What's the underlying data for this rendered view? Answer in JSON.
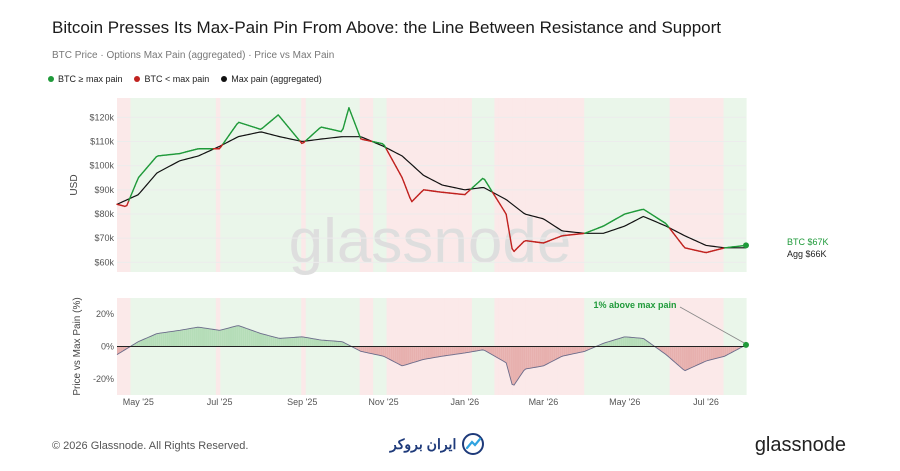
{
  "header": {
    "title": "Bitcoin Presses Its Max-Pain Pin From Above: the Line Between Resistance and Support",
    "subtitle": "BTC Price · Options Max Pain (aggregated) · Price vs Max Pain"
  },
  "legend": {
    "items": [
      {
        "label": "BTC ≥ max pain",
        "color": "#1f9a3a"
      },
      {
        "label": "BTC < max pain",
        "color": "#c0221f"
      },
      {
        "label": "Max pain (aggregated)",
        "color": "#111111"
      }
    ]
  },
  "colors": {
    "above": "#1f9a3a",
    "below": "#c0221f",
    "maxpain": "#111111",
    "band_red": "#fbe9e9",
    "band_green": "#eaf6ea"
  },
  "watermark": "glassnode",
  "chart_data": [
    {
      "type": "line",
      "ylabel": "USD",
      "ylim": [
        56000,
        128000
      ],
      "yticks": [
        60000,
        70000,
        80000,
        90000,
        100000,
        110000,
        120000
      ],
      "ytick_labels": [
        "$60k",
        "$70k",
        "$80k",
        "$90k",
        "$100k",
        "$110k",
        "$120k"
      ],
      "x_range": [
        "2025-04-15",
        "2026-07-31"
      ],
      "xtick_dates": [
        "2025-05-01",
        "2025-07-01",
        "2025-09-01",
        "2025-11-01",
        "2026-01-01",
        "2026-03-01",
        "2026-05-01",
        "2026-07-01"
      ],
      "xtick_labels": [
        "May '25",
        "Jul '25",
        "Sep '25",
        "Nov '25",
        "Jan '26",
        "Mar '26",
        "May '26",
        "Jul '26"
      ],
      "series": [
        {
          "name": "BTC",
          "x": [
            "2025-04-15",
            "2025-04-22",
            "2025-05-01",
            "2025-05-15",
            "2025-06-01",
            "2025-06-15",
            "2025-07-01",
            "2025-07-15",
            "2025-08-01",
            "2025-08-14",
            "2025-09-01",
            "2025-09-15",
            "2025-10-01",
            "2025-10-06",
            "2025-10-15",
            "2025-11-01",
            "2025-11-15",
            "2025-11-22",
            "2025-12-01",
            "2025-12-15",
            "2026-01-01",
            "2026-01-15",
            "2026-02-01",
            "2026-02-06",
            "2026-02-15",
            "2026-03-01",
            "2026-03-15",
            "2026-04-01",
            "2026-04-15",
            "2026-05-01",
            "2026-05-15",
            "2026-06-01",
            "2026-06-15",
            "2026-07-01",
            "2026-07-15",
            "2026-07-31"
          ],
          "y": [
            84000,
            83000,
            95000,
            104000,
            105000,
            107000,
            107000,
            118000,
            115000,
            121000,
            109000,
            116000,
            114000,
            124000,
            111000,
            109000,
            95000,
            85000,
            90000,
            89000,
            88000,
            95000,
            80000,
            64000,
            69000,
            68000,
            71000,
            72000,
            75000,
            80000,
            82000,
            76000,
            66000,
            64000,
            66000,
            67000
          ]
        },
        {
          "name": "Max pain (aggregated)",
          "x": [
            "2025-04-15",
            "2025-05-01",
            "2025-05-15",
            "2025-06-01",
            "2025-06-15",
            "2025-07-01",
            "2025-07-15",
            "2025-08-01",
            "2025-08-15",
            "2025-09-01",
            "2025-09-15",
            "2025-10-01",
            "2025-10-15",
            "2025-11-01",
            "2025-11-15",
            "2025-12-01",
            "2025-12-15",
            "2026-01-01",
            "2026-01-15",
            "2026-02-01",
            "2026-02-15",
            "2026-03-01",
            "2026-03-15",
            "2026-04-01",
            "2026-04-15",
            "2026-05-01",
            "2026-05-15",
            "2026-06-01",
            "2026-06-15",
            "2026-07-01",
            "2026-07-15",
            "2026-07-31"
          ],
          "y": [
            84000,
            88000,
            97000,
            102000,
            104000,
            108000,
            112000,
            114000,
            112000,
            110000,
            111000,
            112000,
            112000,
            108000,
            104000,
            96000,
            92000,
            90000,
            91000,
            86000,
            80000,
            78000,
            73000,
            72000,
            72000,
            75000,
            79000,
            75000,
            71000,
            67000,
            66000,
            66000
          ]
        }
      ],
      "annotations": [
        {
          "text": "BTC $67K",
          "color": "#1f9a3a"
        },
        {
          "text": "Agg $66K",
          "color": "#222222"
        }
      ]
    },
    {
      "type": "area",
      "ylabel": "Price vs Max Pain (%)",
      "ylim": [
        -30,
        30
      ],
      "yticks": [
        -20,
        0,
        20
      ],
      "ytick_labels": [
        "-20%",
        "0%",
        "20%"
      ],
      "x": [
        "2025-04-15",
        "2025-05-01",
        "2025-05-15",
        "2025-06-01",
        "2025-06-15",
        "2025-07-01",
        "2025-07-15",
        "2025-08-01",
        "2025-08-15",
        "2025-09-01",
        "2025-09-15",
        "2025-10-01",
        "2025-10-15",
        "2025-11-01",
        "2025-11-15",
        "2025-12-01",
        "2025-12-15",
        "2026-01-01",
        "2026-01-15",
        "2026-02-01",
        "2026-02-06",
        "2026-02-15",
        "2026-03-01",
        "2026-03-15",
        "2026-04-01",
        "2026-04-15",
        "2026-05-01",
        "2026-05-15",
        "2026-06-01",
        "2026-06-15",
        "2026-07-01",
        "2026-07-15",
        "2026-07-31"
      ],
      "y": [
        -5,
        3,
        8,
        10,
        12,
        10,
        13,
        8,
        5,
        6,
        4,
        3,
        -3,
        -6,
        -12,
        -8,
        -6,
        -4,
        -2,
        -10,
        -25,
        -14,
        -12,
        -6,
        -3,
        2,
        6,
        5,
        -5,
        -15,
        -9,
        -6,
        1
      ],
      "annotation": "1% above max pain"
    }
  ],
  "footer": {
    "copyright": "© 2026 Glassnode. All Rights Reserved.",
    "partner": "ایران بروکر",
    "logo": "glassnode"
  }
}
